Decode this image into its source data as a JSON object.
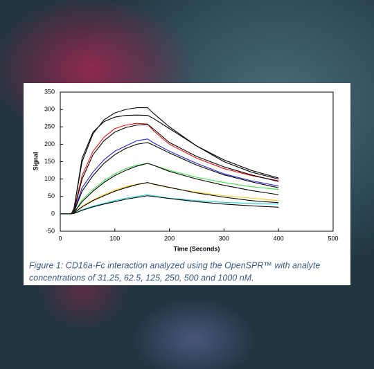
{
  "chart_data": {
    "type": "line",
    "x_label": "Time (Seconds)",
    "y_label": "Signal",
    "xlim": [
      0,
      500
    ],
    "xticks": [
      0,
      100,
      200,
      300,
      400,
      500
    ],
    "ylim": [
      -50,
      350
    ],
    "yticks": [
      -50,
      0,
      50,
      100,
      150,
      200,
      250,
      300,
      350
    ],
    "grid": false,
    "x": [
      0,
      20,
      25,
      40,
      60,
      80,
      100,
      120,
      140,
      160,
      170,
      200,
      250,
      300,
      350,
      400
    ],
    "series": [
      {
        "color": "#000000",
        "values": [
          0,
          0,
          15,
          150,
          230,
          270,
          290,
          300,
          305,
          305,
          290,
          250,
          195,
          150,
          120,
          100
        ]
      },
      {
        "color": "#000000",
        "values": [
          0,
          0,
          12,
          160,
          235,
          265,
          278,
          283,
          284,
          283,
          275,
          245,
          195,
          155,
          125,
          103
        ]
      },
      {
        "color": "#ee1111",
        "values": [
          0,
          0,
          10,
          110,
          180,
          220,
          245,
          255,
          260,
          258,
          240,
          200,
          160,
          130,
          110,
          95
        ]
      },
      {
        "color": "#000000",
        "values": [
          0,
          0,
          8,
          100,
          170,
          210,
          235,
          248,
          255,
          257,
          245,
          205,
          165,
          135,
          112,
          93
        ]
      },
      {
        "color": "#2222cc",
        "values": [
          0,
          0,
          5,
          75,
          120,
          155,
          180,
          195,
          210,
          215,
          205,
          180,
          145,
          115,
          95,
          80
        ]
      },
      {
        "color": "#000000",
        "values": [
          0,
          0,
          5,
          65,
          110,
          145,
          170,
          188,
          200,
          205,
          198,
          175,
          140,
          112,
          92,
          75
        ]
      },
      {
        "color": "#44dd44",
        "values": [
          0,
          0,
          4,
          40,
          70,
          95,
          115,
          130,
          140,
          145,
          140,
          125,
          105,
          90,
          78,
          70
        ]
      },
      {
        "color": "#000000",
        "values": [
          0,
          0,
          3,
          35,
          65,
          90,
          110,
          125,
          137,
          145,
          140,
          122,
          100,
          82,
          67,
          55
        ]
      },
      {
        "color": "#f5c518",
        "values": [
          0,
          0,
          2,
          22,
          40,
          55,
          68,
          78,
          85,
          90,
          85,
          75,
          62,
          52,
          45,
          38
        ]
      },
      {
        "color": "#000000",
        "values": [
          0,
          0,
          2,
          20,
          38,
          52,
          65,
          75,
          84,
          90,
          86,
          76,
          60,
          48,
          38,
          32
        ]
      },
      {
        "color": "#22cccc",
        "values": [
          0,
          0,
          1,
          12,
          22,
          30,
          38,
          45,
          50,
          55,
          52,
          45,
          38,
          33,
          30,
          28
        ]
      },
      {
        "color": "#000000",
        "values": [
          0,
          0,
          1,
          10,
          20,
          28,
          35,
          42,
          47,
          52,
          50,
          44,
          35,
          28,
          23,
          19
        ]
      }
    ],
    "caption": [
      "Figure 1: CD16a-Fc interaction analyzed using the OpenSPR™ with analyte",
      "concentrations of 31.25, 62.5, 125, 250, 500 and 1000 nM."
    ]
  }
}
